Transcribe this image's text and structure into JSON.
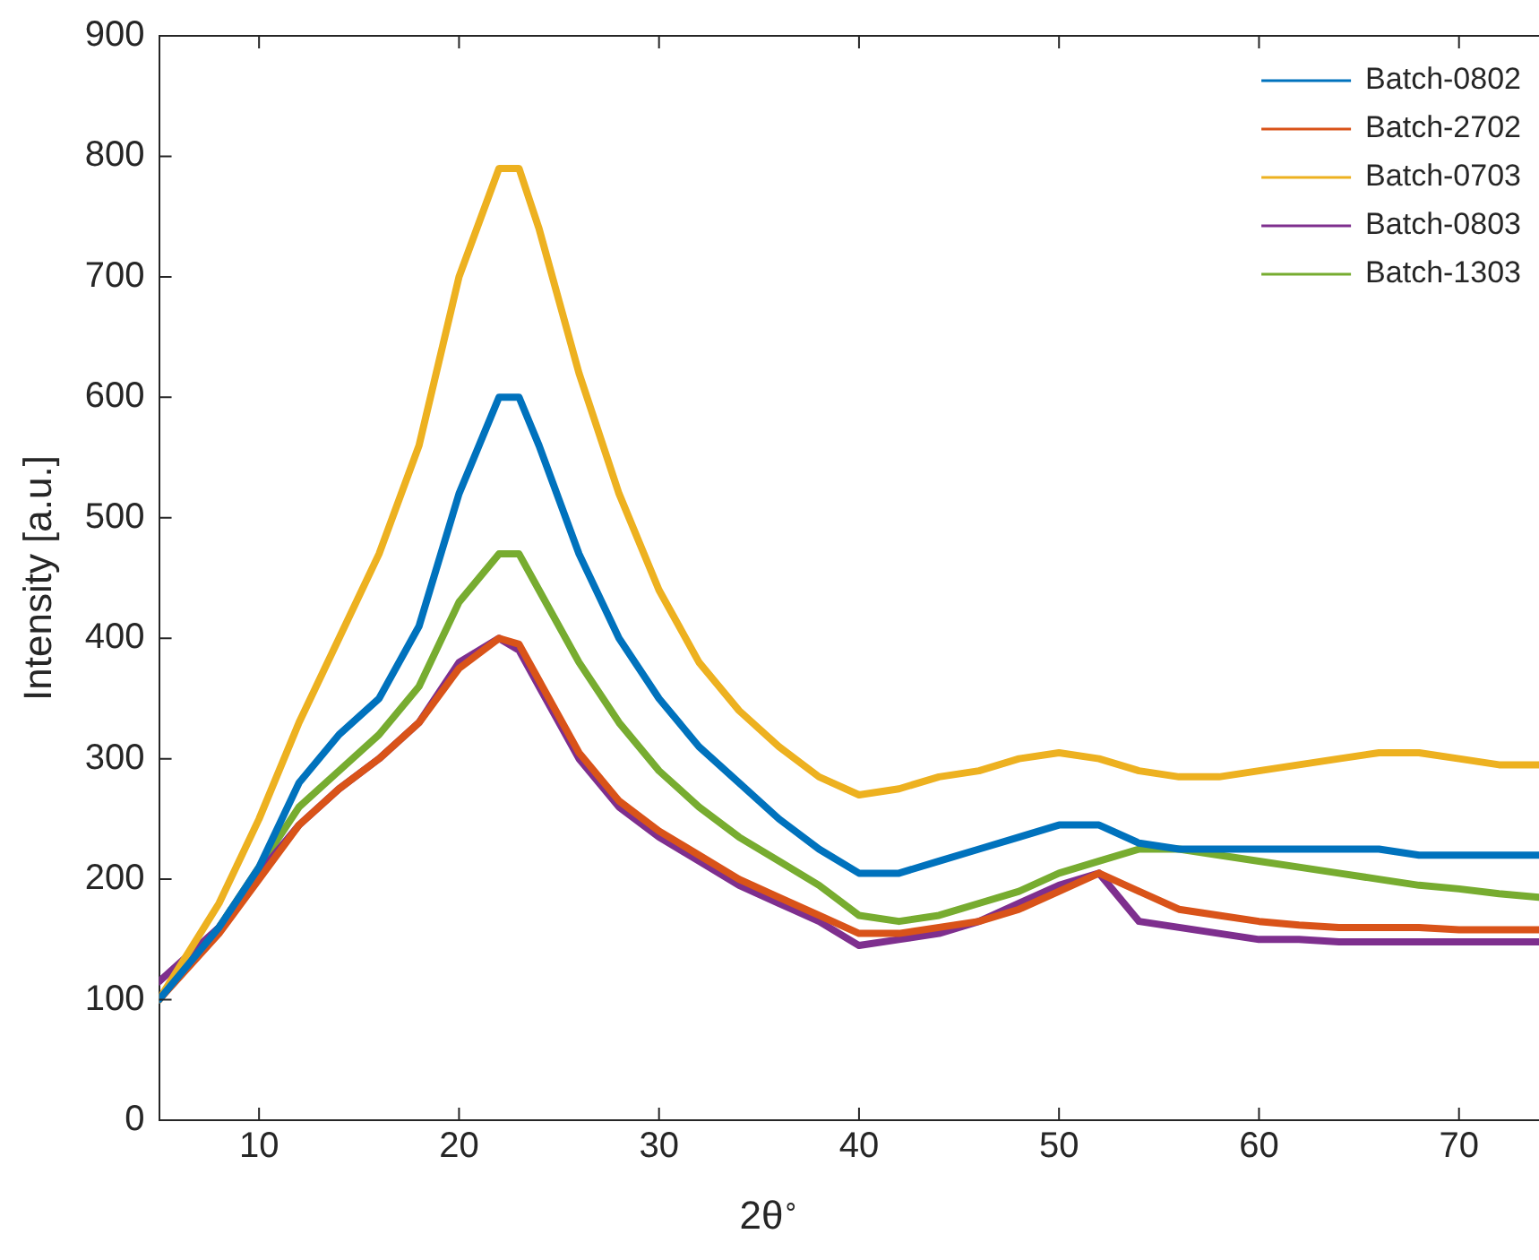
{
  "chart_data": {
    "type": "line",
    "xlabel": "2θ$^{∘}$",
    "ylabel": "Intensity [a.u.]",
    "xlim": [
      5,
      74
    ],
    "xticks": [
      10,
      20,
      30,
      40,
      50,
      60,
      70
    ],
    "ylim": [
      0,
      900
    ],
    "yticks": [
      0,
      100,
      200,
      300,
      400,
      500,
      600,
      700,
      800,
      900
    ],
    "grid": false,
    "legend": "top right",
    "marker": "none",
    "line_style": "solid",
    "x": [
      5,
      8,
      10,
      12,
      14,
      16,
      18,
      20,
      22,
      23,
      24,
      26,
      28,
      30,
      32,
      34,
      36,
      38,
      40,
      42,
      44,
      46,
      48,
      50,
      52,
      54,
      56,
      58,
      60,
      62,
      64,
      66,
      68,
      70,
      72,
      74
    ],
    "series": [
      {
        "name": "Batch-0802",
        "color": "#0072bd",
        "values": [
          100,
          160,
          210,
          280,
          320,
          350,
          410,
          520,
          600,
          600,
          560,
          470,
          400,
          350,
          310,
          280,
          250,
          225,
          205,
          205,
          215,
          225,
          235,
          245,
          245,
          230,
          225,
          225,
          225,
          225,
          225,
          225,
          220,
          220,
          220,
          220
        ]
      },
      {
        "name": "Batch-2702",
        "color": "#d95319",
        "values": [
          100,
          155,
          200,
          245,
          275,
          300,
          330,
          375,
          400,
          395,
          365,
          305,
          265,
          240,
          220,
          200,
          185,
          170,
          155,
          155,
          160,
          165,
          175,
          190,
          205,
          190,
          175,
          170,
          165,
          162,
          160,
          160,
          160,
          158,
          158,
          158
        ]
      },
      {
        "name": "Batch-0703",
        "color": "#edb120",
        "values": [
          100,
          180,
          250,
          330,
          400,
          470,
          560,
          700,
          790,
          790,
          740,
          620,
          520,
          440,
          380,
          340,
          310,
          285,
          270,
          275,
          285,
          290,
          300,
          305,
          300,
          290,
          285,
          285,
          290,
          295,
          300,
          305,
          305,
          300,
          295,
          295
        ]
      },
      {
        "name": "Batch-0803",
        "color": "#7e2f8e",
        "values": [
          115,
          160,
          205,
          245,
          275,
          300,
          330,
          380,
          400,
          390,
          360,
          300,
          260,
          235,
          215,
          195,
          180,
          165,
          145,
          150,
          155,
          165,
          180,
          195,
          205,
          165,
          160,
          155,
          150,
          150,
          148,
          148,
          148,
          148,
          148,
          148
        ]
      },
      {
        "name": "Batch-1303",
        "color": "#77ac30",
        "values": [
          100,
          160,
          210,
          260,
          290,
          320,
          360,
          430,
          470,
          470,
          440,
          380,
          330,
          290,
          260,
          235,
          215,
          195,
          170,
          165,
          170,
          180,
          190,
          205,
          215,
          225,
          225,
          220,
          215,
          210,
          205,
          200,
          195,
          192,
          188,
          185
        ]
      }
    ]
  }
}
